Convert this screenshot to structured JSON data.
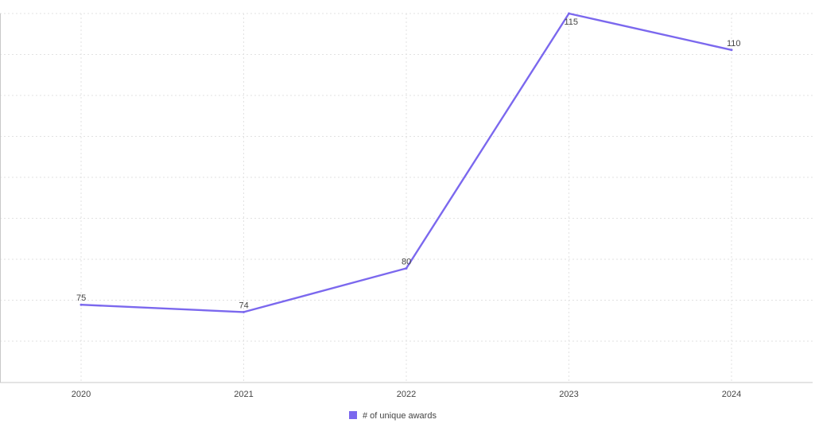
{
  "chart_data": {
    "type": "line",
    "categories": [
      "2020",
      "2021",
      "2022",
      "2023",
      "2024"
    ],
    "series": [
      {
        "name": "# of unique awards",
        "values": [
          75,
          74,
          80,
          115,
          110
        ],
        "color": "#7b68ee"
      }
    ],
    "ylim": [
      70,
      115
    ],
    "grid": true,
    "legend_position": "bottom-center",
    "data_labels": [
      "75",
      "74",
      "80",
      "115",
      "110"
    ]
  }
}
